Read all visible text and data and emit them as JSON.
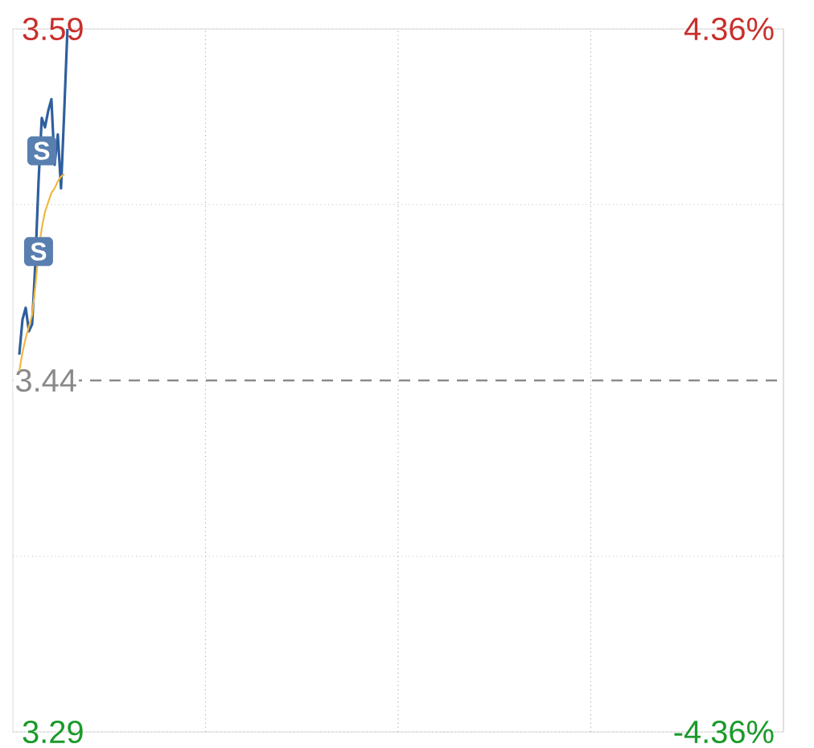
{
  "chart_data": {
    "type": "line",
    "categories": [
      null,
      null,
      null,
      null,
      null,
      null,
      null,
      null,
      null,
      null,
      null,
      null,
      null,
      null,
      null,
      null,
      null,
      null,
      null,
      null,
      null,
      null,
      null,
      null,
      null,
      null,
      null,
      null,
      null,
      null,
      null,
      null,
      null,
      null,
      null,
      null,
      null,
      null,
      null,
      null,
      null,
      null,
      null,
      null,
      null,
      null,
      null,
      null,
      null,
      null,
      null,
      null,
      null,
      null,
      null,
      null,
      null,
      null,
      null,
      null,
      null,
      null,
      null,
      null,
      null,
      null,
      null,
      null,
      null,
      null,
      null,
      null,
      null,
      null,
      null,
      null,
      null,
      null,
      null,
      null,
      null,
      null,
      null,
      null,
      null,
      null,
      null,
      null,
      null,
      null,
      null,
      null,
      null,
      null,
      null,
      null,
      null,
      null,
      null,
      null,
      null,
      null,
      null,
      null,
      null,
      null,
      null,
      null,
      null,
      null,
      null,
      null,
      null,
      null,
      null,
      null,
      null,
      null,
      null,
      null,
      null,
      null,
      null,
      null,
      null,
      null,
      null,
      null,
      null,
      null,
      null,
      null,
      null,
      null,
      null,
      null,
      null,
      null,
      null,
      null,
      null,
      null,
      null,
      null,
      null,
      null,
      null,
      null,
      null,
      null,
      null,
      null,
      null,
      null,
      null,
      null,
      null,
      null,
      null,
      null,
      null,
      null,
      null,
      null,
      null,
      null,
      null,
      null,
      null,
      null,
      null,
      null,
      null,
      null,
      null,
      null,
      null,
      null,
      null,
      null,
      null,
      null,
      null,
      null,
      null,
      null,
      null,
      null,
      null,
      null,
      null,
      null,
      null,
      null,
      null,
      null,
      null,
      null,
      null,
      null,
      null,
      null,
      null,
      null,
      null,
      null,
      null,
      null,
      null,
      null,
      null,
      null,
      null,
      null,
      null,
      null,
      null,
      null,
      null,
      null,
      null,
      null,
      null,
      null,
      null,
      null,
      null,
      null,
      null,
      null,
      null,
      null,
      null,
      null,
      null,
      null,
      null,
      null,
      null,
      null,
      null
    ],
    "series": [
      {
        "color": "#2f5f9e",
        "values": [
          null,
          null,
          3.451,
          3.466,
          3.471,
          3.461,
          3.464,
          3.49,
          3.525,
          3.552,
          3.548,
          3.555,
          3.56,
          3.532,
          3.545,
          3.522,
          3.555,
          3.59,
          null,
          null,
          null,
          null,
          null,
          null,
          null,
          null,
          null,
          null,
          null,
          null,
          null,
          null,
          null,
          null,
          null,
          null,
          null,
          null,
          null,
          null,
          null,
          null,
          null,
          null,
          null,
          null,
          null,
          null,
          null,
          null,
          null,
          null,
          null,
          null,
          null,
          null,
          null,
          null,
          null,
          null,
          null,
          null,
          null,
          null,
          null,
          null,
          null,
          null,
          null,
          null,
          null,
          null,
          null,
          null,
          null,
          null,
          null,
          null,
          null,
          null,
          null,
          null,
          null,
          null,
          null,
          null,
          null,
          null,
          null,
          null,
          null,
          null,
          null,
          null,
          null,
          null,
          null,
          null,
          null,
          null,
          null,
          null,
          null,
          null,
          null,
          null,
          null,
          null,
          null,
          null,
          null,
          null,
          null,
          null,
          null,
          null,
          null,
          null,
          null,
          null,
          null,
          null,
          null,
          null,
          null,
          null,
          null,
          null,
          null,
          null,
          null,
          null,
          null,
          null,
          null,
          null,
          null,
          null,
          null,
          null,
          null,
          null,
          null,
          null,
          null,
          null,
          null,
          null,
          null,
          null,
          null,
          null,
          null,
          null,
          null,
          null,
          null,
          null,
          null,
          null,
          null,
          null,
          null,
          null,
          null,
          null,
          null,
          null,
          null,
          null,
          null,
          null,
          null,
          null,
          null,
          null,
          null,
          null,
          null,
          null,
          null,
          null,
          null,
          null,
          null,
          null,
          null,
          null,
          null,
          null,
          null,
          null,
          null,
          null,
          null,
          null,
          null,
          null,
          null,
          null,
          null,
          null,
          null,
          null,
          null,
          null,
          null,
          null,
          null,
          null,
          null,
          null,
          null,
          null,
          null,
          null,
          null,
          null,
          null,
          null,
          null,
          null,
          null,
          null,
          null,
          null,
          null,
          null,
          null,
          null,
          null,
          null,
          null,
          null,
          null,
          null,
          null,
          null,
          null,
          null,
          null
        ]
      },
      {
        "color": "#f0b840",
        "values": [
          null,
          null,
          3.444,
          3.452,
          3.458,
          3.463,
          3.468,
          3.48,
          3.495,
          3.505,
          3.512,
          3.516,
          3.52,
          3.522,
          3.525,
          3.527,
          3.528,
          null,
          null,
          null,
          null,
          null,
          null,
          null,
          null,
          null,
          null,
          null,
          null,
          null,
          null,
          null,
          null,
          null,
          null,
          null,
          null,
          null,
          null,
          null,
          null,
          null,
          null,
          null,
          null,
          null,
          null,
          null,
          null,
          null,
          null,
          null,
          null,
          null,
          null,
          null,
          null,
          null,
          null,
          null,
          null,
          null,
          null,
          null,
          null,
          null,
          null,
          null,
          null,
          null,
          null,
          null,
          null,
          null,
          null,
          null,
          null,
          null,
          null,
          null,
          null,
          null,
          null,
          null,
          null,
          null,
          null,
          null,
          null,
          null,
          null,
          null,
          null,
          null,
          null,
          null,
          null,
          null,
          null,
          null,
          null,
          null,
          null,
          null,
          null,
          null,
          null,
          null,
          null,
          null,
          null,
          null,
          null,
          null,
          null,
          null,
          null,
          null,
          null,
          null,
          null,
          null,
          null,
          null,
          null,
          null,
          null,
          null,
          null,
          null,
          null,
          null,
          null,
          null,
          null,
          null,
          null,
          null,
          null,
          null,
          null,
          null,
          null,
          null,
          null,
          null,
          null,
          null,
          null,
          null,
          null,
          null,
          null,
          null,
          null,
          null,
          null,
          null,
          null,
          null,
          null,
          null,
          null,
          null,
          null,
          null,
          null,
          null,
          null,
          null,
          null,
          null,
          null,
          null,
          null,
          null,
          null,
          null,
          null,
          null,
          null,
          null,
          null,
          null,
          null,
          null,
          null,
          null,
          null,
          null,
          null,
          null,
          null,
          null,
          null,
          null,
          null,
          null,
          null,
          null,
          null,
          null,
          null,
          null,
          null,
          null,
          null,
          null,
          null,
          null,
          null,
          null,
          null,
          null,
          null,
          null,
          null,
          null,
          null,
          null,
          null,
          null,
          null,
          null,
          null,
          null,
          null,
          null,
          null,
          null,
          null,
          null,
          null,
          null,
          null,
          null,
          null,
          null,
          null,
          null,
          null
        ]
      }
    ],
    "ylim": [
      3.29,
      3.59
    ],
    "yticks": [
      3.29,
      {
        "value": 3.365,
        "label": null
      },
      {
        "value": 3.515,
        "label": null
      },
      3.59
    ],
    "y2lim": [
      -4.36,
      4.36
    ],
    "y2ticks": [
      {
        "value": -4.36,
        "label": "-4.36%"
      },
      {
        "value": 4.36,
        "label": "4.36%"
      }
    ],
    "ref_lines": [
      {
        "axis": "y",
        "value": 3.44,
        "label": "3.44",
        "color": "#8a8a8a",
        "line_style": "dashed"
      }
    ],
    "annotations": [
      {
        "text": "S",
        "y": 3.495
      },
      {
        "text": "S",
        "y": 3.538
      }
    ],
    "grid": true,
    "marker": "none",
    "line_style": "solid"
  }
}
